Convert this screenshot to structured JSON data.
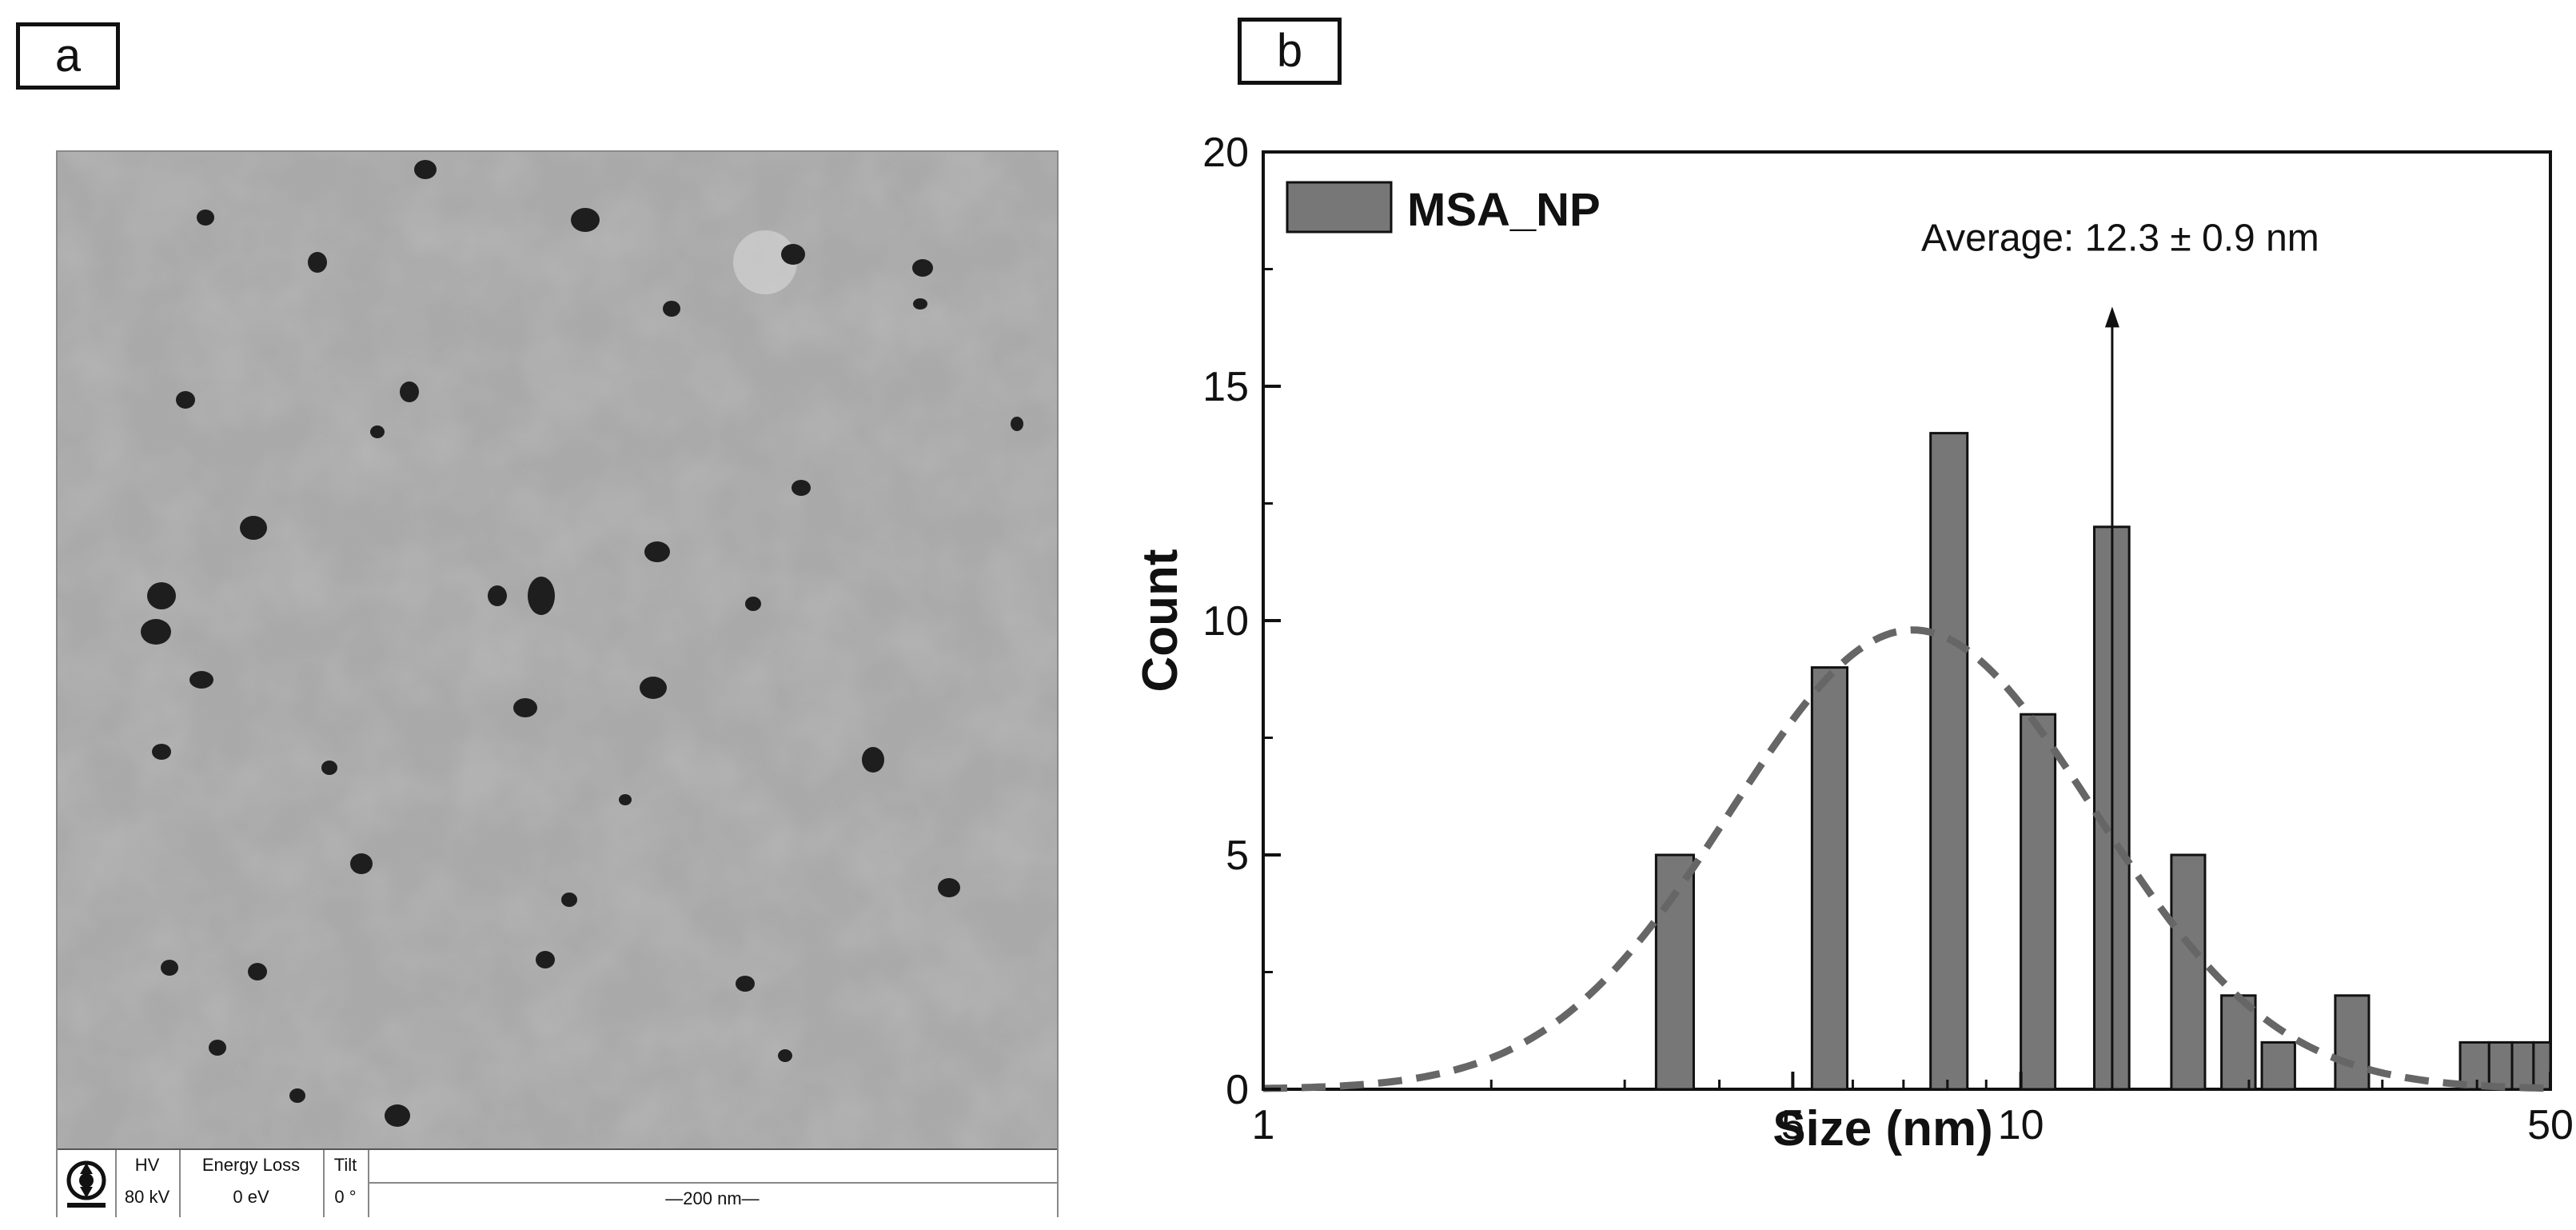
{
  "panels": {
    "a": "a",
    "b": "b"
  },
  "tem_info": {
    "hv_label": "HV",
    "hv_value": "80 kV",
    "energy_label": "Energy Loss",
    "energy_value": "0 eV",
    "tilt_label": "Tilt",
    "tilt_value": "0 °",
    "scale_bar": "—200 nm—"
  },
  "chart_data": {
    "type": "bar",
    "title": "",
    "xlabel": "Size (nm)",
    "ylabel": "Count",
    "xscale": "log",
    "xlim": [
      1,
      50
    ],
    "ylim": [
      0,
      20
    ],
    "xticks": [
      1,
      5,
      10,
      50
    ],
    "yticks": [
      0,
      5,
      10,
      15,
      20
    ],
    "legend": {
      "label": "MSA_NP",
      "placement": "top-left"
    },
    "bar_color": "#777777",
    "series": [
      {
        "name": "MSA_NP",
        "bins": [
          {
            "from": 3.3,
            "to": 3.7,
            "count": 5
          },
          {
            "from": 5.3,
            "to": 5.9,
            "count": 9
          },
          {
            "from": 7.6,
            "to": 8.5,
            "count": 14
          },
          {
            "from": 10.0,
            "to": 11.1,
            "count": 8
          },
          {
            "from": 12.5,
            "to": 13.9,
            "count": 12
          },
          {
            "from": 15.8,
            "to": 17.5,
            "count": 5
          },
          {
            "from": 18.4,
            "to": 20.4,
            "count": 2
          },
          {
            "from": 20.8,
            "to": 23.0,
            "count": 1
          },
          {
            "from": 26.0,
            "to": 28.8,
            "count": 2
          },
          {
            "from": 38.0,
            "to": 41.5,
            "count": 1
          },
          {
            "from": 41.5,
            "to": 44.5,
            "count": 1
          },
          {
            "from": 44.5,
            "to": 47.5,
            "count": 1
          },
          {
            "from": 47.5,
            "to": 50.0,
            "count": 1
          }
        ]
      }
    ],
    "fit_curve": {
      "style": "dashed",
      "color": "#666666",
      "type": "lognormal",
      "peak_x": 7.2,
      "peak_count": 9.8,
      "sigma_log10": 0.24
    },
    "annotation": {
      "text": "Average: 12.3 ± 0.9 nm",
      "arrow_x": 13.2,
      "arrow_from": 0,
      "arrow_to": 16.7
    }
  }
}
